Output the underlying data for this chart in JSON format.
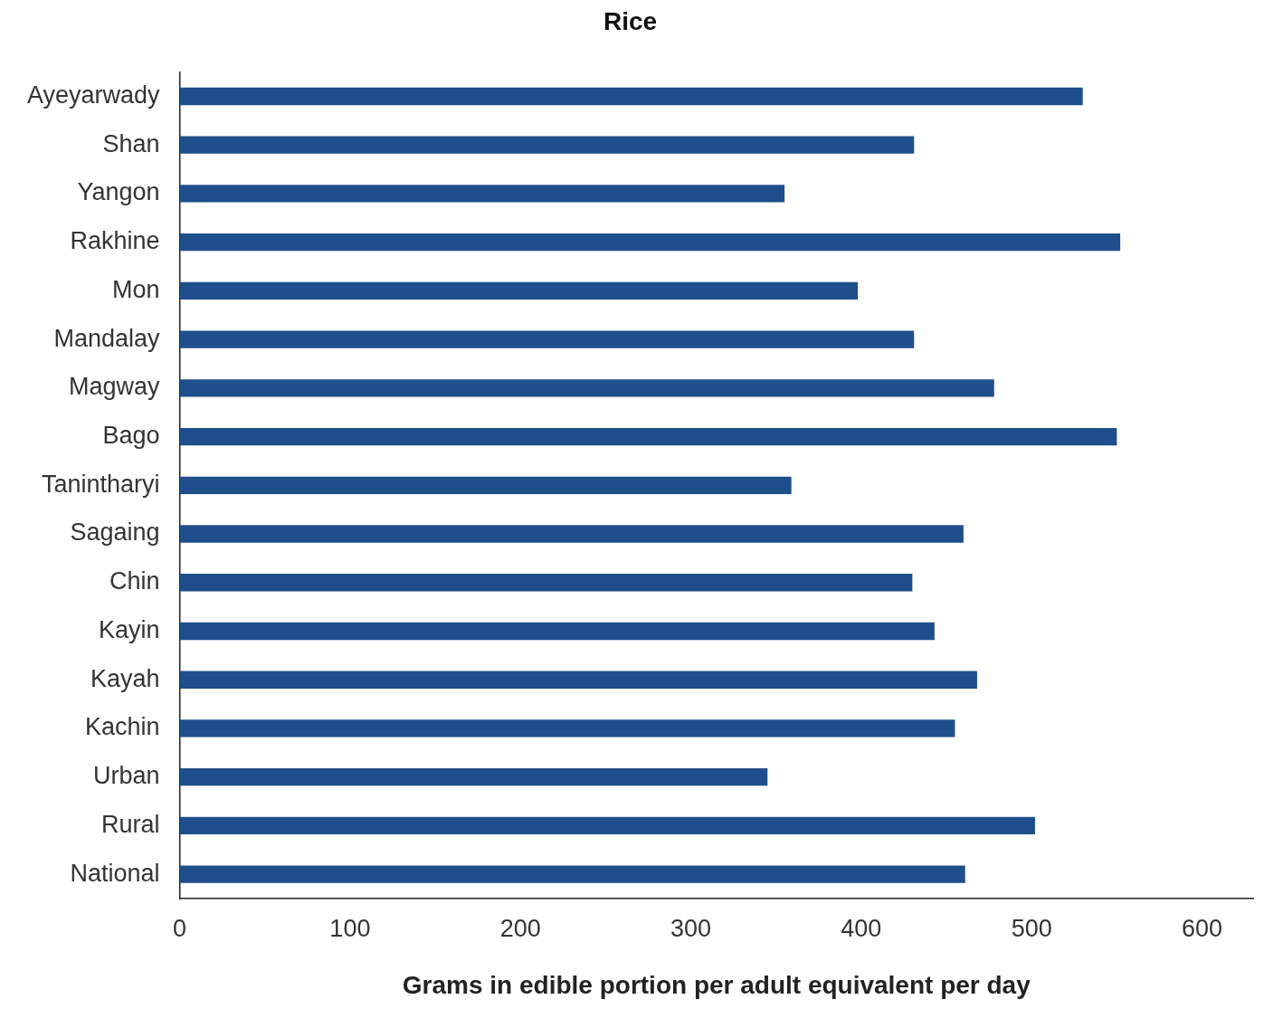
{
  "chart_data": {
    "type": "bar",
    "orientation": "horizontal",
    "title": "Rice",
    "xlabel": "Grams in edible portion per adult equivalent per day",
    "categories": [
      "Ayeyarwady",
      "Shan",
      "Yangon",
      "Rakhine",
      "Mon",
      "Mandalay",
      "Magway",
      "Bago",
      "Tanintharyi",
      "Sagaing",
      "Chin",
      "Kayin",
      "Kayah",
      "Kachin",
      "Urban",
      "Rural",
      "National"
    ],
    "values": [
      530,
      431,
      355,
      552,
      398,
      431,
      478,
      550,
      359,
      460,
      430,
      443,
      468,
      455,
      345,
      502,
      461
    ],
    "color": "#1f4e8c",
    "xlim": [
      0,
      630
    ],
    "xticks": [
      0,
      100,
      200,
      300,
      400,
      500,
      600
    ],
    "grid": false,
    "legend": false
  }
}
